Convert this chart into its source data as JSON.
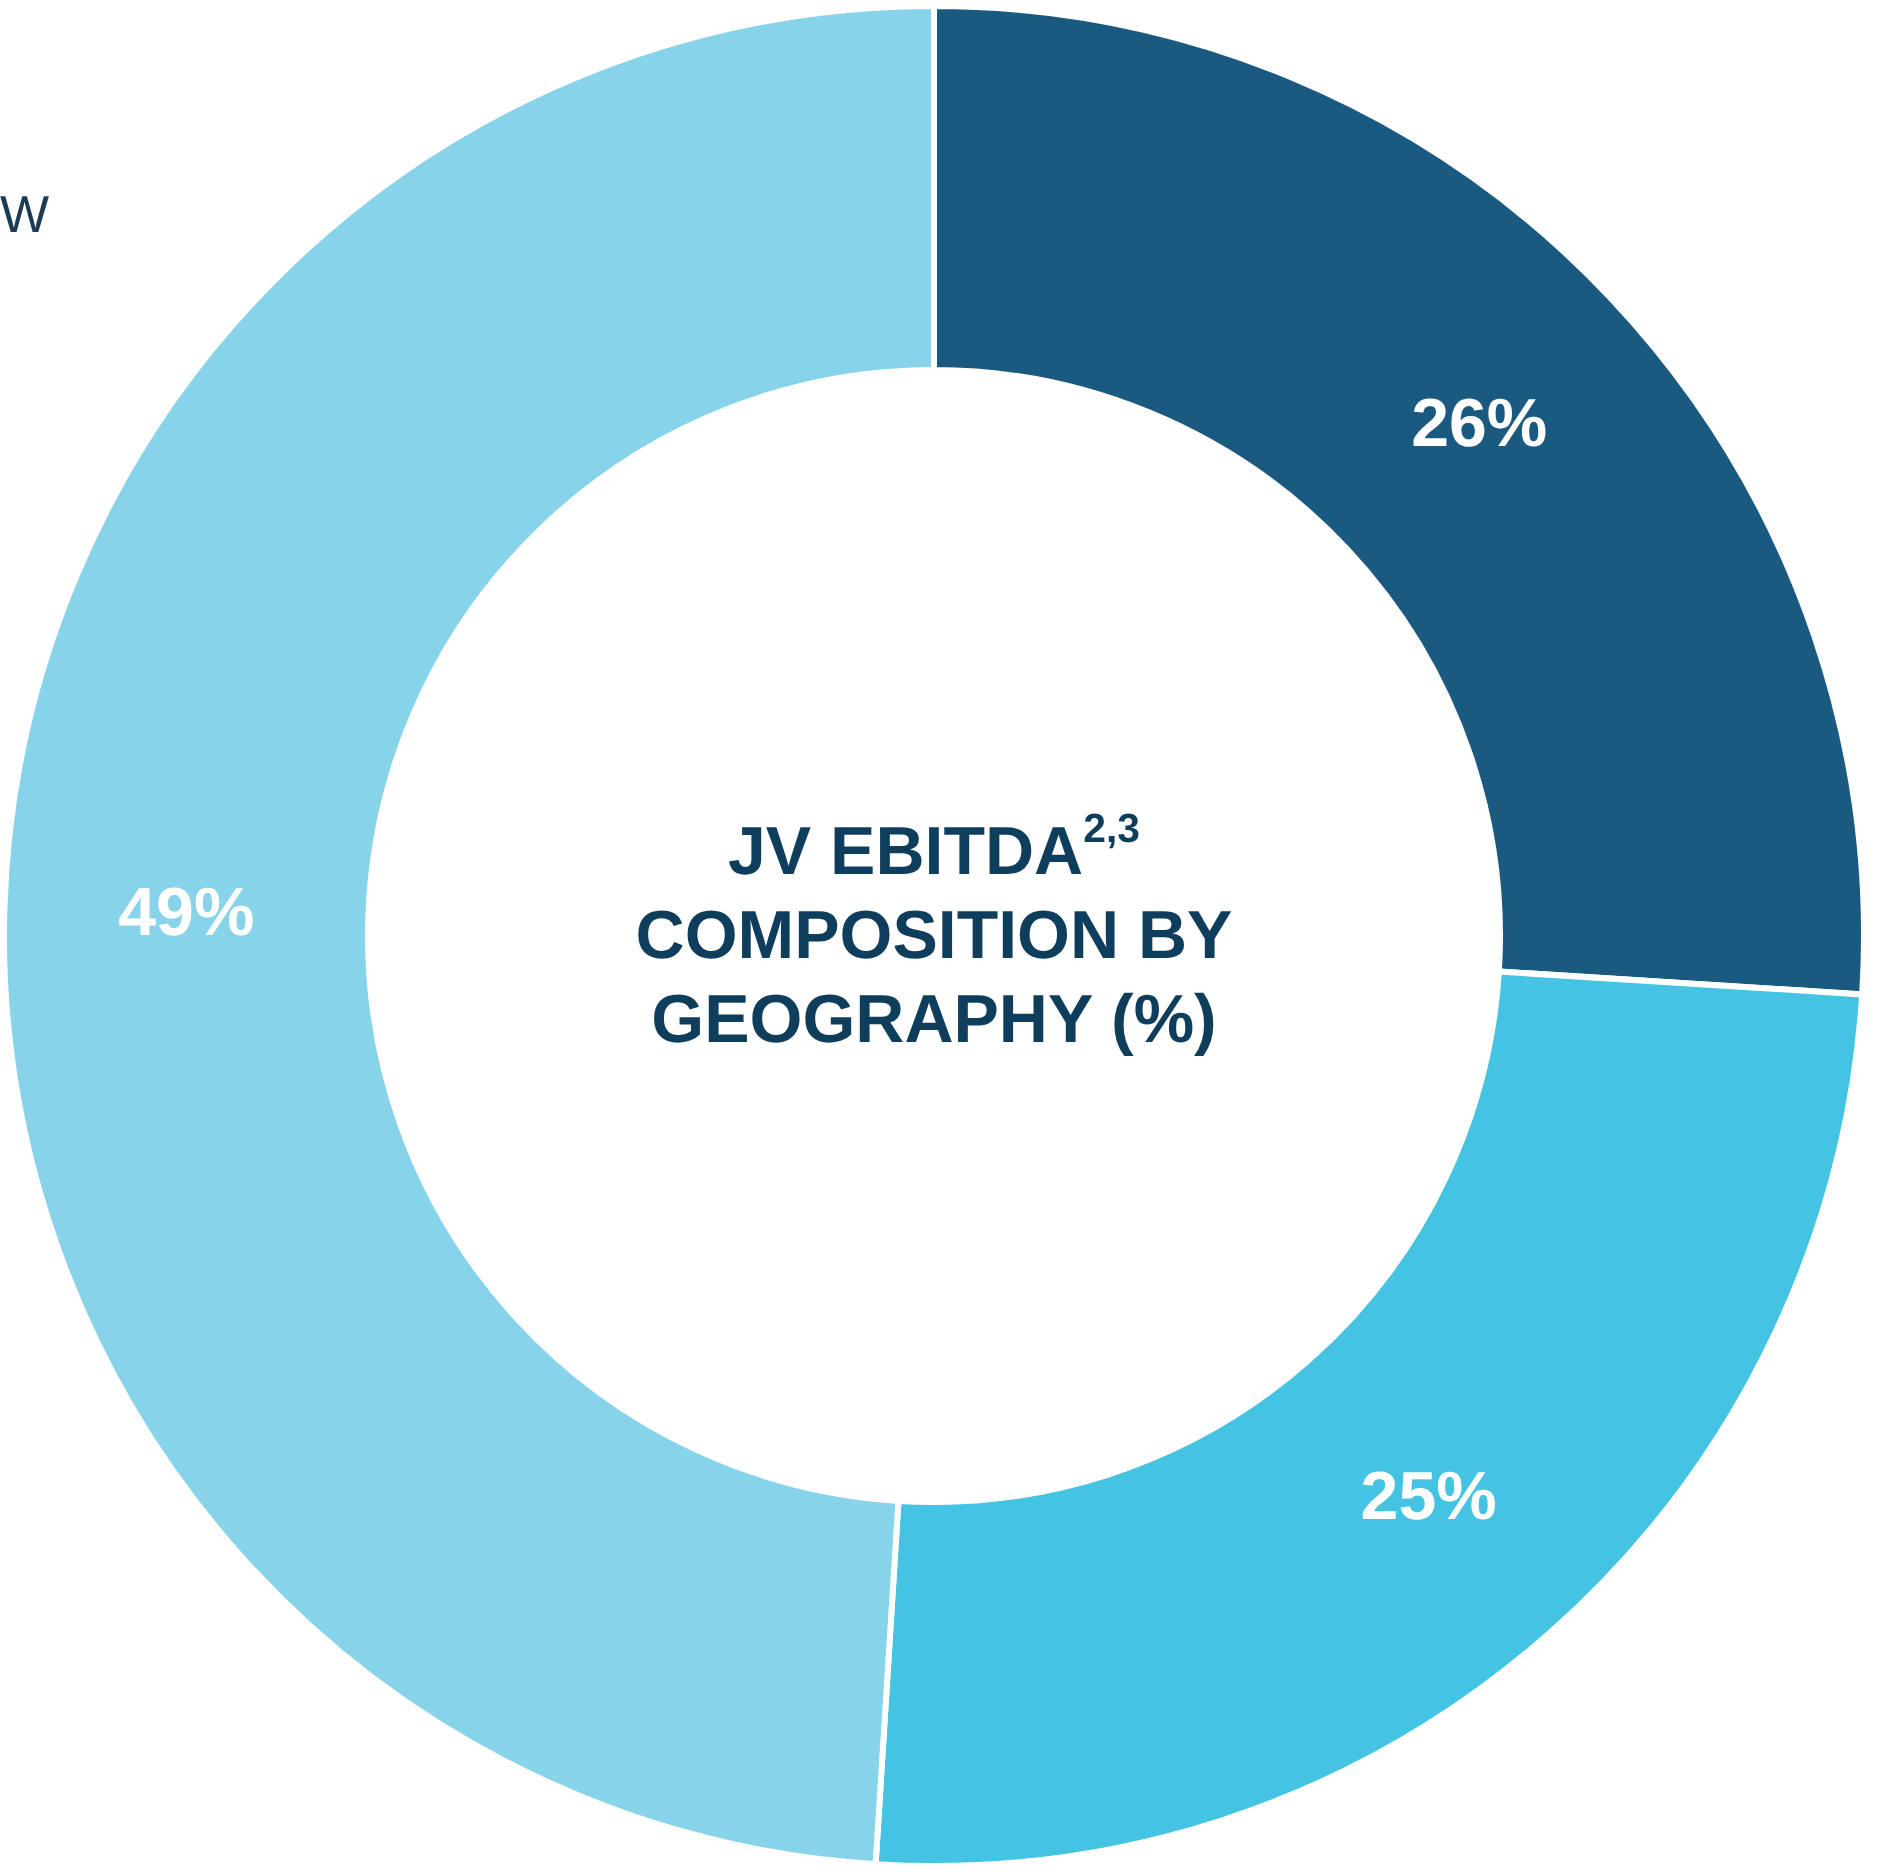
{
  "chart_data": {
    "type": "donut",
    "title": "JV EBITDA$^{2,3}$ COMPOSITION BY GEOGRAPHY (%)",
    "categories": [
      null,
      null,
      null
    ],
    "values": [
      26,
      25,
      49
    ],
    "colors": [
      "#1b5a80",
      "#44c4e2",
      "#87d3ea"
    ],
    "value_labels": [
      "26%",
      "25%",
      "49%"
    ],
    "annotations": [
      "W"
    ]
  }
}
